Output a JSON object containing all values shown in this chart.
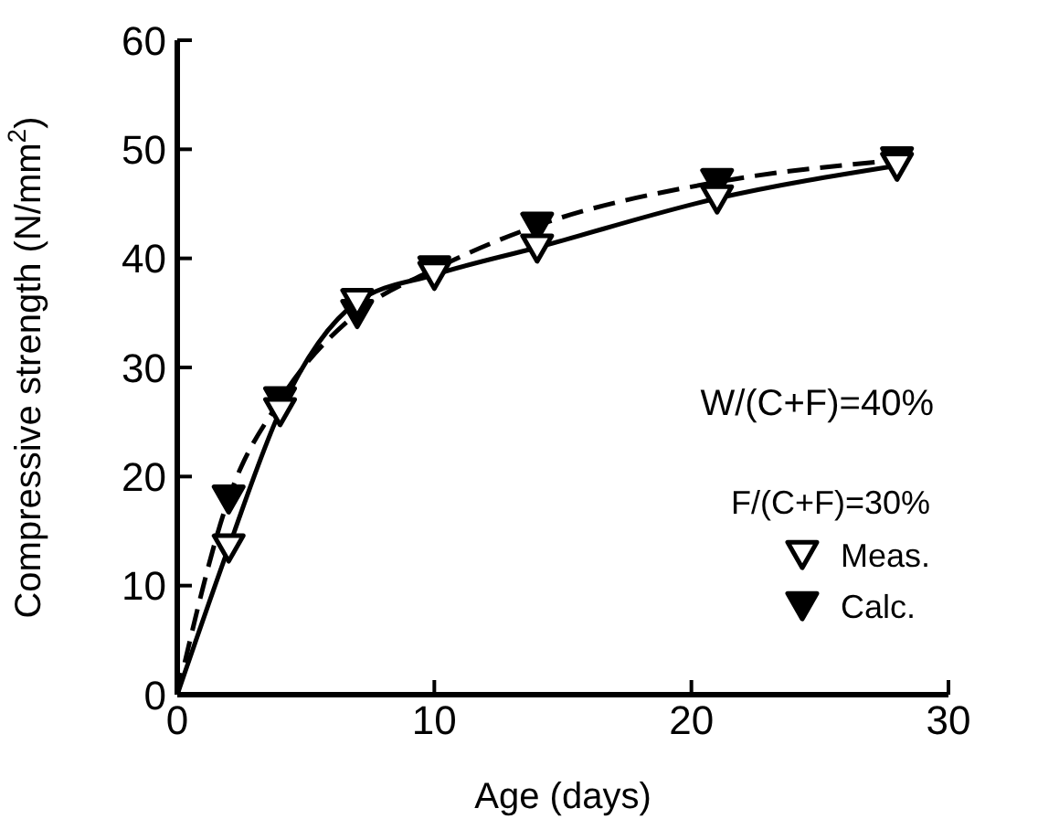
{
  "chart_data": {
    "type": "line",
    "xlabel": "Age  (days)",
    "ylabel": "Compressive strength  (N/mm$^{2}$)",
    "xlim": [
      0,
      30
    ],
    "xticks": [
      0,
      10,
      20,
      30
    ],
    "ylim": [
      0,
      60
    ],
    "yticks": [
      0,
      10,
      20,
      30,
      40,
      50,
      60
    ],
    "marker": "triangle",
    "legend": "bottom right",
    "legend_title": "F/(C+F)=30%",
    "annotations": [
      "W/(C+F)=40%"
    ],
    "x": [
      0,
      2,
      4,
      7,
      10,
      14,
      21,
      28
    ],
    "series": [
      {
        "name": "Meas.",
        "color": "#000000",
        "line_style": "solid",
        "values": [
          0,
          13.5,
          26,
          36,
          38.5,
          41,
          45.5,
          48.5
        ]
      },
      {
        "name": "Calc.",
        "color": "#000000",
        "line_style": "dashed",
        "values": [
          0,
          18,
          27,
          35,
          39,
          43,
          47,
          49
        ]
      }
    ],
    "grid": false
  }
}
